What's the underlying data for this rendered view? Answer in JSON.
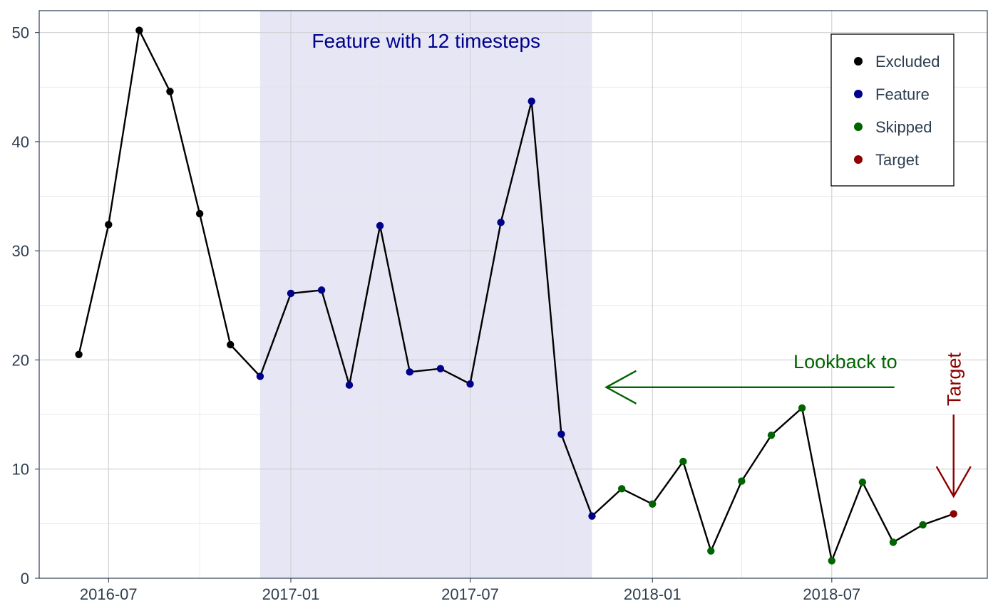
{
  "chart_data": {
    "type": "line",
    "title": "",
    "xlabel": "",
    "ylabel": "",
    "x_ticks": [
      "2016-07",
      "2017-01",
      "2017-07",
      "2018-01",
      "2018-07"
    ],
    "y_ticks": [
      "0",
      "10",
      "20",
      "30",
      "40",
      "50"
    ],
    "ylim": [
      0,
      52
    ],
    "xlim": [
      "2016-04-22",
      "2018-12-05"
    ],
    "grid": true,
    "legend_position": "top-right",
    "x": [
      "2016-06",
      "2016-07",
      "2016-08",
      "2016-09",
      "2016-10",
      "2016-11",
      "2016-12",
      "2017-01",
      "2017-02",
      "2017-03",
      "2017-04",
      "2017-05",
      "2017-06",
      "2017-07",
      "2017-08",
      "2017-09",
      "2017-10",
      "2017-11",
      "2017-12",
      "2018-01",
      "2018-02",
      "2018-03",
      "2018-04",
      "2018-05",
      "2018-06",
      "2018-07",
      "2018-08",
      "2018-09",
      "2018-10",
      "2018-11"
    ],
    "y": [
      20.5,
      32.4,
      50.2,
      44.6,
      33.4,
      21.4,
      18.5,
      26.1,
      26.4,
      17.7,
      32.3,
      18.9,
      19.2,
      17.8,
      32.6,
      43.7,
      13.2,
      5.7,
      8.2,
      6.8,
      10.7,
      2.5,
      8.9,
      13.1,
      15.6,
      1.6,
      8.8,
      3.3,
      4.9,
      5.9
    ],
    "point_groups": [
      "Excluded",
      "Excluded",
      "Excluded",
      "Excluded",
      "Excluded",
      "Excluded",
      "Feature",
      "Feature",
      "Feature",
      "Feature",
      "Feature",
      "Feature",
      "Feature",
      "Feature",
      "Feature",
      "Feature",
      "Feature",
      "Feature",
      "Skipped",
      "Skipped",
      "Skipped",
      "Skipped",
      "Skipped",
      "Skipped",
      "Skipped",
      "Skipped",
      "Skipped",
      "Skipped",
      "Skipped",
      "Target"
    ],
    "legend": [
      {
        "name": "Excluded",
        "color": "#000000"
      },
      {
        "name": "Feature",
        "color": "#00008b"
      },
      {
        "name": "Skipped",
        "color": "#006400"
      },
      {
        "name": "Target",
        "color": "#8b0000"
      }
    ],
    "line_color": "#000000",
    "feature_window": {
      "start": "2016-12",
      "end": "2017-11",
      "label": "Feature with 12 timesteps",
      "fill_color": "#e6e6f5",
      "label_color": "#00008b"
    },
    "annotations": [
      {
        "text": "Lookback to",
        "color": "#006400",
        "arrow_from": "2018-10",
        "arrow_to": "2017-11",
        "arrow_y": 17.5,
        "text_y": 19.9
      },
      {
        "text": "Target",
        "color": "#8b0000",
        "arrow_x": "2018-11",
        "arrow_from_y": 15.0,
        "arrow_to_y": 7.5
      }
    ]
  }
}
